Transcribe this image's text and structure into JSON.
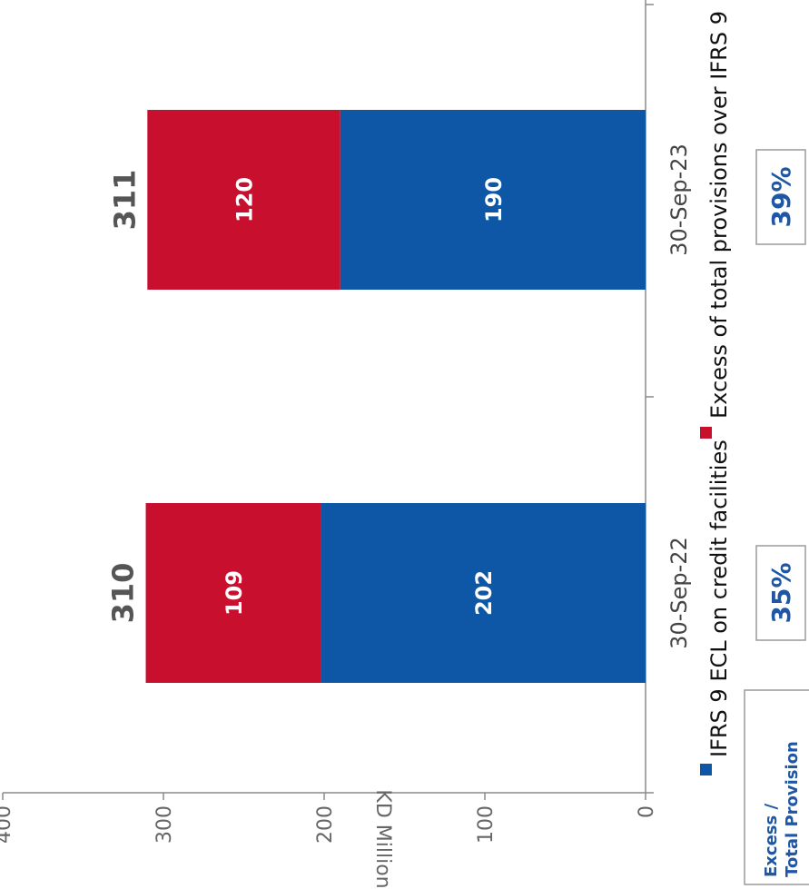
{
  "chart_data": {
    "type": "bar",
    "stacked": true,
    "orientation": "rotated-90-clockwise",
    "categories": [
      "30-Sep-22",
      "30-Sep-23"
    ],
    "series": [
      {
        "name": "IFRS 9 ECL on credit facilities",
        "values": [
          202,
          190
        ],
        "color": "#0d57a6"
      },
      {
        "name": "Excess of total provisions over IFRS 9",
        "values": [
          109,
          120
        ],
        "color": "#c8102e"
      }
    ],
    "totals": [
      "310",
      "311"
    ],
    "ylabel": "KD Million",
    "ylim": [
      0,
      400
    ],
    "yticks": [
      0,
      100,
      200,
      300,
      400
    ],
    "legend_position": "bottom",
    "ratio": {
      "header": [
        "Excess /",
        "Total Provision"
      ],
      "values": [
        "35%",
        "39%"
      ]
    }
  }
}
